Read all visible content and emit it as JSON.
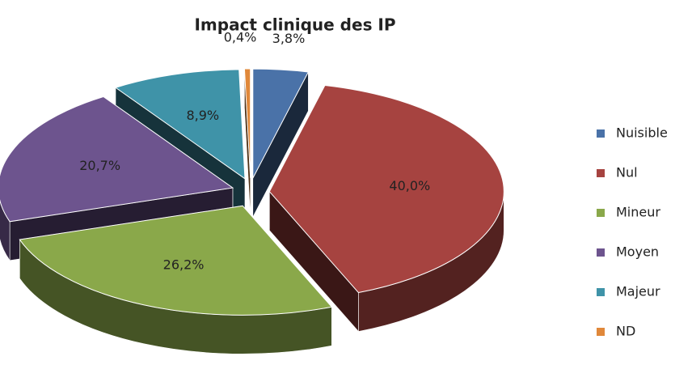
{
  "chart_data": {
    "type": "pie3d",
    "title": "Impact clinique des IP",
    "categories": [
      "Nuisible",
      "Nul",
      "Mineur",
      "Moyen",
      "Majeur",
      "ND"
    ],
    "values": [
      3.8,
      40.0,
      26.2,
      20.7,
      8.9,
      0.4
    ],
    "value_labels": [
      "3,8%",
      "40,0%",
      "26,2%",
      "20,7%",
      "8,9%",
      "0,4%"
    ],
    "colors": [
      "#4a72a8",
      "#a64340",
      "#8aa84a",
      "#6d548e",
      "#3f93a8",
      "#e0883a"
    ],
    "legend": "right"
  }
}
